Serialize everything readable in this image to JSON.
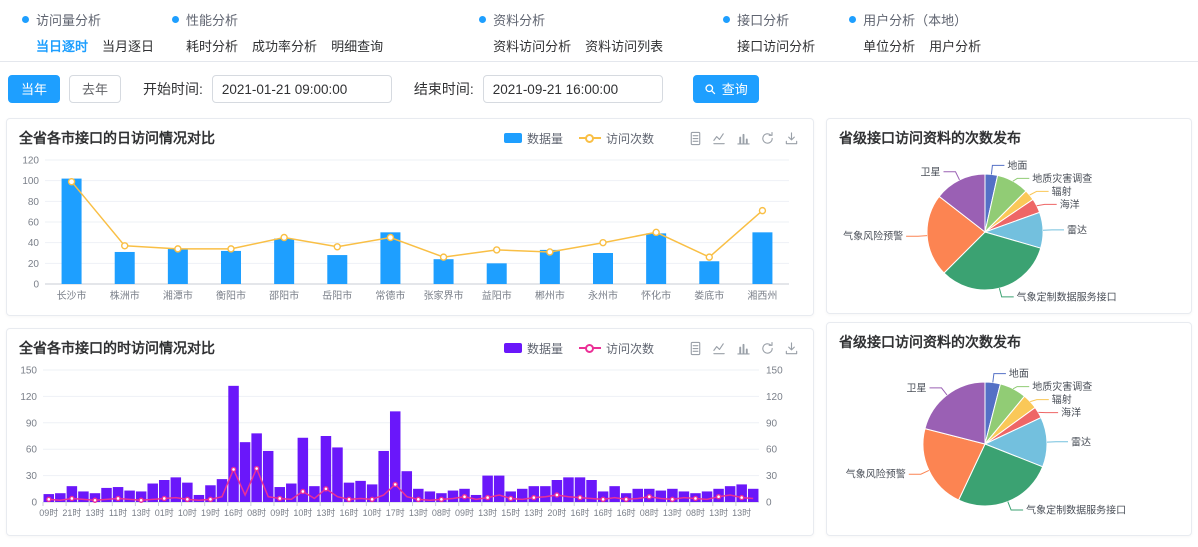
{
  "nav": {
    "groups": [
      {
        "title": "访问量分析",
        "items": [
          {
            "label": "当日逐时",
            "active": true
          },
          {
            "label": "当月逐日",
            "active": false
          }
        ]
      },
      {
        "title": "性能分析",
        "items": [
          {
            "label": "耗时分析",
            "active": false
          },
          {
            "label": "成功率分析",
            "active": false
          },
          {
            "label": "明细查询",
            "active": false
          }
        ]
      },
      {
        "title": "资料分析",
        "items": [
          {
            "label": "资料访问分析",
            "active": false
          },
          {
            "label": "资料访问列表",
            "active": false
          }
        ]
      },
      {
        "title": "接口分析",
        "items": [
          {
            "label": "接口访问分析",
            "active": false
          }
        ]
      },
      {
        "title": "用户分析（本地）",
        "items": [
          {
            "label": "单位分析",
            "active": false
          },
          {
            "label": "用户分析",
            "active": false
          }
        ]
      }
    ]
  },
  "filters": {
    "this_year_label": "当年",
    "last_year_label": "去年",
    "start_time_label": "开始时间:",
    "start_time_value": "2021-01-21 09:00:00",
    "end_time_label": "结束时间:",
    "end_time_value": "2021-09-21 16:00:00",
    "search_label": "查询"
  },
  "toolbox": [
    "data-view-icon",
    "switch-line-icon",
    "switch-bar-icon",
    "restore-icon",
    "save-image-icon"
  ],
  "colors": {
    "accent": "#1e9fff",
    "daily_bar": "#1e9fff",
    "daily_line": "#f9bf45",
    "hourly_bar": "#6a17fa",
    "hourly_line": "#eb2f96"
  },
  "chart_data": [
    {
      "type": "bar",
      "title": "全省各市接口的日访问情况对比",
      "categories": [
        "长沙市",
        "株洲市",
        "湘潭市",
        "衡阳市",
        "邵阳市",
        "岳阳市",
        "常德市",
        "张家界市",
        "益阳市",
        "郴州市",
        "永州市",
        "怀化市",
        "娄底市",
        "湘西州"
      ],
      "series": [
        {
          "name": "数据量",
          "type": "bar",
          "color": "#1e9fff",
          "values": [
            102,
            31,
            34,
            32,
            44,
            28,
            50,
            24,
            20,
            33,
            30,
            49,
            22,
            50
          ]
        },
        {
          "name": "访问次数",
          "type": "line",
          "color": "#f9bf45",
          "values": [
            99,
            37,
            34,
            34,
            45,
            36,
            45,
            26,
            33,
            31,
            40,
            50,
            26,
            71
          ]
        }
      ],
      "ylim": [
        0,
        120
      ],
      "ytick": 20,
      "xlabel": "",
      "ylabel": "",
      "grid": true,
      "legend_position": "top-right"
    },
    {
      "type": "bar",
      "title": "全省各市接口的时访问情况对比",
      "categories": [
        "09时",
        "21时",
        "13时",
        "11时",
        "13时",
        "01时",
        "10时",
        "19时",
        "16时",
        "08时",
        "09时",
        "10时",
        "13时",
        "16时",
        "10时",
        "17时",
        "13时",
        "08时",
        "09时",
        "13时",
        "15时",
        "13时",
        "20时",
        "16时",
        "16时",
        "16时",
        "08时",
        "13时",
        "08时",
        "13时",
        "13时"
      ],
      "label_stride": 2,
      "series": [
        {
          "name": "数据量",
          "type": "bar",
          "color": "#6a17fa",
          "values": [
            9,
            10,
            18,
            12,
            10,
            16,
            17,
            13,
            12,
            21,
            25,
            28,
            22,
            8,
            19,
            26,
            132,
            68,
            78,
            58,
            17,
            21,
            73,
            18,
            75,
            62,
            22,
            24,
            20,
            58,
            103,
            35,
            15,
            12,
            10,
            13,
            15,
            8,
            30,
            30,
            12,
            15,
            18,
            18,
            25,
            28,
            28,
            25,
            12,
            18,
            10,
            15,
            15,
            13,
            15,
            12,
            10,
            12,
            15,
            18,
            20,
            15
          ]
        },
        {
          "name": "访问次数",
          "type": "line",
          "color": "#eb2f96",
          "values": [
            3,
            2,
            4,
            3,
            2,
            3,
            4,
            3,
            2,
            3,
            4,
            5,
            3,
            2,
            3,
            6,
            37,
            8,
            38,
            6,
            4,
            3,
            12,
            4,
            15,
            6,
            3,
            4,
            3,
            8,
            20,
            6,
            3,
            2,
            3,
            4,
            6,
            3,
            5,
            8,
            4,
            3,
            5,
            6,
            8,
            6,
            5,
            4,
            3,
            5,
            3,
            4,
            6,
            4,
            3,
            5,
            4,
            3,
            6,
            8,
            5,
            4
          ]
        }
      ],
      "ylim": [
        0,
        150
      ],
      "ytick": 30,
      "dual_axis": true,
      "xlabel": "",
      "ylabel": "",
      "grid": true,
      "legend_position": "top-right"
    },
    {
      "type": "pie",
      "title": "省级接口访问资料的次数发布",
      "slices": [
        {
          "label": "地面",
          "value": 3.5,
          "color": "#5470c6"
        },
        {
          "label": "地质灾害调查",
          "value": 9,
          "color": "#91cc75"
        },
        {
          "label": "辐射",
          "value": 3,
          "color": "#fac858"
        },
        {
          "label": "海洋",
          "value": 4,
          "color": "#ee6666"
        },
        {
          "label": "雷达",
          "value": 10,
          "color": "#73c0de"
        },
        {
          "label": "气象定制数据服务接口",
          "value": 33,
          "color": "#3ba272"
        },
        {
          "label": "气象风险预警",
          "value": 23,
          "color": "#fc8452"
        },
        {
          "label": "卫星",
          "value": 14.5,
          "color": "#9a60b4"
        }
      ]
    },
    {
      "type": "pie",
      "title": "省级接口访问资料的次数发布",
      "slices": [
        {
          "label": "地面",
          "value": 4,
          "color": "#5470c6"
        },
        {
          "label": "地质灾害调查",
          "value": 7,
          "color": "#91cc75"
        },
        {
          "label": "辐射",
          "value": 4,
          "color": "#fac858"
        },
        {
          "label": "海洋",
          "value": 3,
          "color": "#ee6666"
        },
        {
          "label": "雷达",
          "value": 13,
          "color": "#73c0de"
        },
        {
          "label": "气象定制数据服务接口",
          "value": 26,
          "color": "#3ba272"
        },
        {
          "label": "气象风险预警",
          "value": 22,
          "color": "#fc8452"
        },
        {
          "label": "卫星",
          "value": 21,
          "color": "#9a60b4"
        }
      ]
    }
  ]
}
